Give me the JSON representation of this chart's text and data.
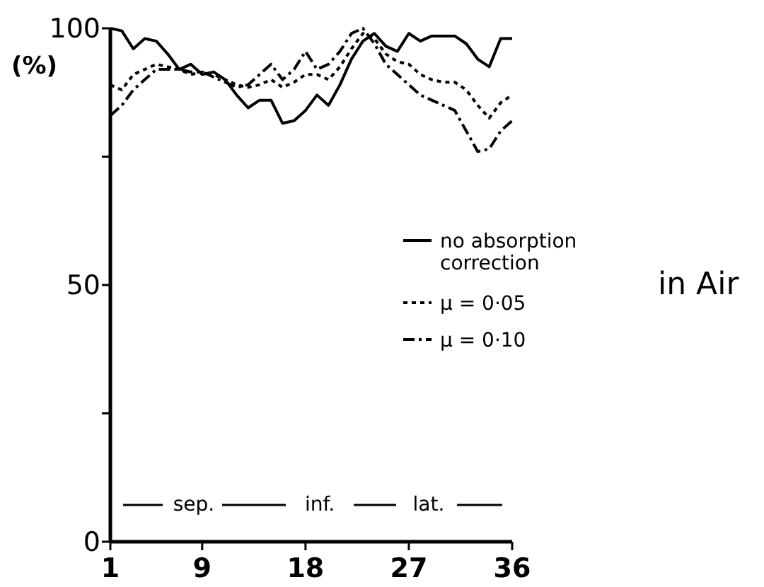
{
  "chart_data": {
    "type": "line",
    "title": "in Air",
    "ylabel": "(%)",
    "x": [
      1,
      2,
      3,
      4,
      5,
      6,
      7,
      8,
      9,
      10,
      11,
      12,
      13,
      14,
      15,
      16,
      17,
      18,
      19,
      20,
      21,
      22,
      23,
      24,
      25,
      26,
      27,
      28,
      29,
      30,
      31,
      32,
      33,
      34,
      35,
      36
    ],
    "xlim": [
      1,
      36
    ],
    "xticks": [
      1,
      9,
      18,
      27,
      36
    ],
    "ylim": [
      0,
      100
    ],
    "yticks": [
      0,
      {
        "value": 25,
        "label": null
      },
      50,
      {
        "value": 75,
        "label": null
      },
      100
    ],
    "grid": false,
    "legend": "right",
    "annotations": [
      "sep.",
      "inf.",
      "lat."
    ],
    "series": [
      {
        "name": "no absorption correction",
        "color": "#000000",
        "line_style": "solid",
        "values": [
          100,
          99.5,
          96,
          98,
          97.5,
          95,
          92,
          93,
          91,
          91.5,
          90,
          87,
          84.5,
          86,
          86,
          81.5,
          82,
          84,
          87,
          85,
          89,
          94,
          97.5,
          99,
          96.5,
          95.5,
          99,
          97.5,
          98.5,
          98.5,
          98.5,
          97,
          94,
          92.5,
          98,
          98
        ]
      },
      {
        "name": "μ = 0·05",
        "color": "#000000",
        "line_style": "dotted",
        "values": [
          89,
          88,
          91,
          92,
          93,
          92.5,
          92,
          91,
          91.5,
          91,
          90,
          89,
          88.5,
          89,
          90,
          88.5,
          89.5,
          91,
          91,
          90,
          92.5,
          96,
          99,
          98,
          95,
          93.5,
          93,
          91,
          90,
          89.5,
          89.5,
          88,
          85,
          82.5,
          85.5,
          87
        ]
      },
      {
        "name": "μ = 0·10",
        "color": "#000000",
        "line_style": "dashdot",
        "values": [
          83,
          85,
          88,
          90,
          92,
          92,
          92,
          91.5,
          91.5,
          90.5,
          89.5,
          88.5,
          89,
          91,
          93,
          90,
          92,
          95.5,
          92,
          93,
          95.5,
          99,
          100,
          97,
          93,
          91,
          89,
          87,
          86,
          85,
          84,
          80,
          76,
          76.5,
          80,
          82
        ]
      }
    ]
  }
}
